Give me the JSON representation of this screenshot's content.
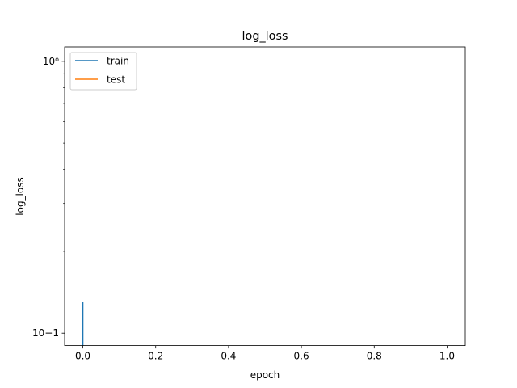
{
  "chart_data": {
    "type": "line",
    "title": "log_loss",
    "xlabel": "epoch",
    "ylabel": "log_loss",
    "yscale": "log",
    "xlim": [
      -0.05,
      1.05
    ],
    "ylim": [
      0.09,
      1.13
    ],
    "x_ticks": [
      0.0,
      0.2,
      0.4,
      0.6,
      0.8,
      1.0
    ],
    "x_tick_labels": [
      "0.0",
      "0.2",
      "0.4",
      "0.6",
      "0.8",
      "1.0"
    ],
    "y_ticks": [
      0.1,
      1
    ],
    "y_tick_labels": [
      "10−1",
      "10⁰"
    ],
    "grid": false,
    "legend_position": "top-left",
    "series": [
      {
        "name": "train",
        "color": "#1f77b4",
        "x": [
          0,
          0
        ],
        "y": [
          0.13,
          0.09
        ]
      },
      {
        "name": "test",
        "color": "#ff7f0e",
        "x": [],
        "y": []
      }
    ]
  }
}
